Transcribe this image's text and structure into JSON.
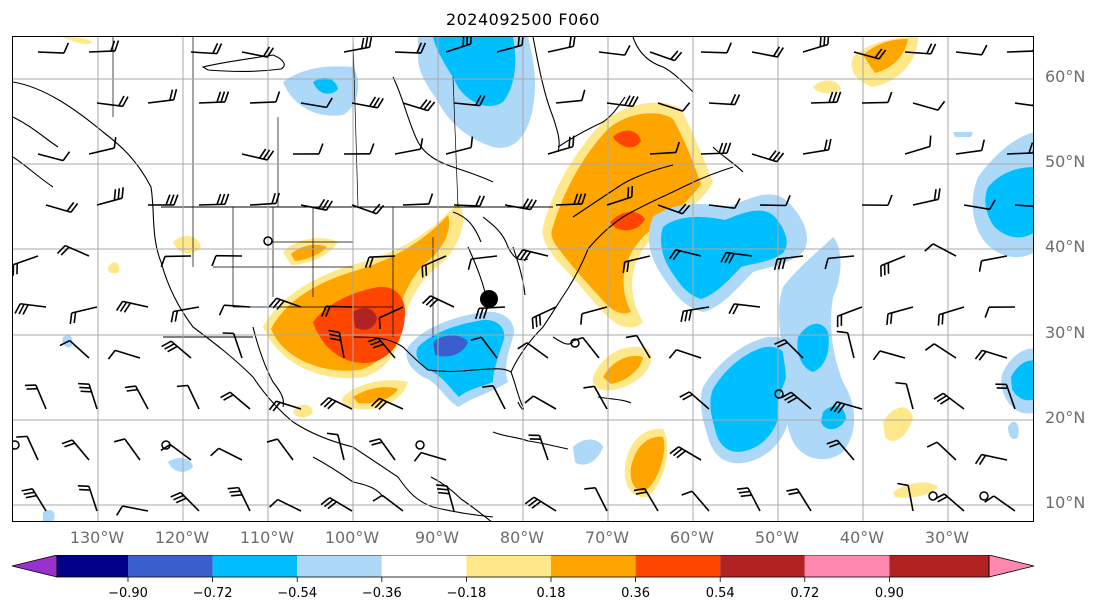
{
  "title": "2024092500 F060",
  "lat_labels": [
    "60°N",
    "50°N",
    "40°N",
    "30°N",
    "20°N",
    "10°N"
  ],
  "lon_labels": [
    "130°W",
    "120°W",
    "110°W",
    "100°W",
    "90°W",
    "80°W",
    "70°W",
    "60°W",
    "50°W",
    "40°W",
    "30°W"
  ],
  "colorbar": {
    "ticks": [
      "−0.90",
      "−0.72",
      "−0.54",
      "−0.36",
      "−0.18",
      "0.18",
      "0.36",
      "0.54",
      "0.72",
      "0.90"
    ],
    "colors": [
      "#9932cc",
      "#00008b",
      "#3a5fcd",
      "#00bfff",
      "#add8f8",
      "#ffffff",
      "#ffe88a",
      "#ffa500",
      "#ff4500",
      "#b22222",
      "#ff88b0"
    ]
  },
  "map": {
    "marker": "black-dot",
    "grid": true
  }
}
